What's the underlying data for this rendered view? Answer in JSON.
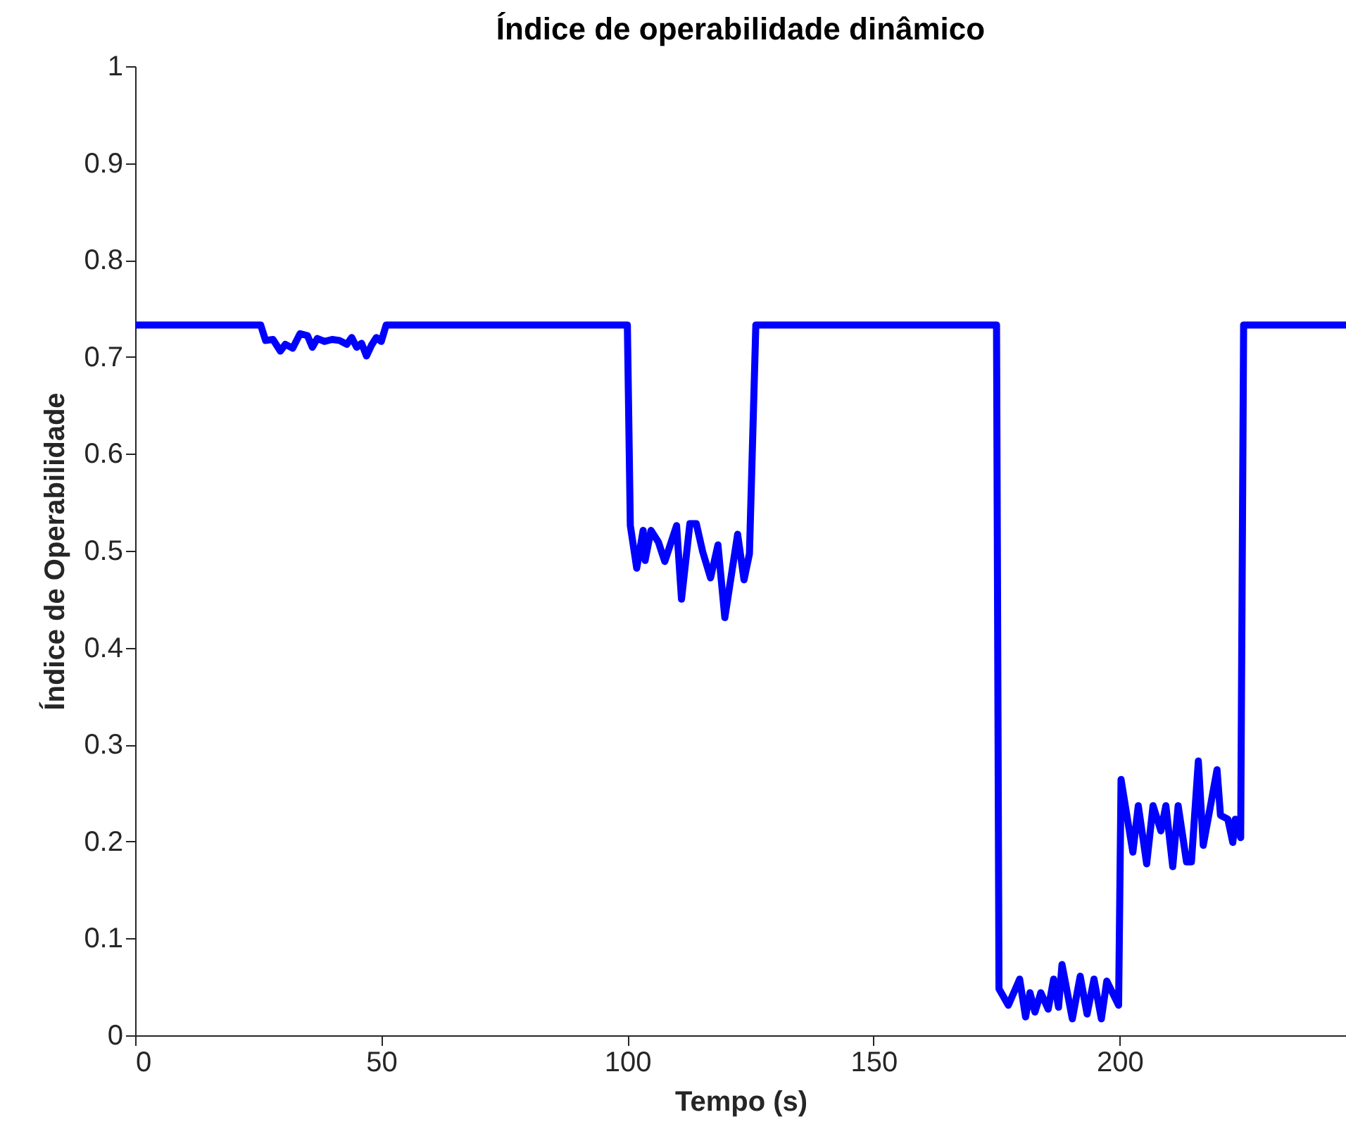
{
  "chart_data": {
    "type": "line",
    "title": "Índice de operabilidade dinâmico",
    "xlabel": "Tempo (s)",
    "ylabel": "Índice de Operabilidade",
    "xlim": [
      0,
      246
    ],
    "xticks": [
      0,
      50,
      100,
      150,
      200
    ],
    "ylim": [
      0,
      1
    ],
    "yticks": [
      0,
      0.1,
      0.2,
      0.3,
      0.4,
      0.5,
      0.6,
      0.7,
      0.8,
      0.9,
      1
    ],
    "grid": false,
    "marker": "none",
    "line_style": "solid",
    "series": [
      {
        "color": "#0000ff",
        "x": [
          0,
          25.5,
          26.5,
          28,
          29.5,
          30.5,
          32,
          33.5,
          35,
          36,
          37,
          38.5,
          40,
          41.5,
          43,
          44,
          45,
          46,
          47,
          48,
          49,
          50,
          51,
          100,
          100.6,
          101.9,
          103.2,
          103.6,
          104.8,
          106.3,
          107.6,
          110,
          111,
          112.7,
          114,
          115.3,
          116.9,
          118.4,
          119.8,
          122.4,
          123.7,
          124.8,
          126.1,
          175,
          175.5,
          177.4,
          179.7,
          180.9,
          181.8,
          182.8,
          184,
          185.5,
          186.6,
          187.6,
          188.3,
          190.4,
          192,
          193.4,
          194.8,
          196.3,
          197.4,
          199.8,
          200.3,
          201.7,
          202.7,
          203.8,
          205.5,
          206.8,
          208.4,
          209.4,
          210.8,
          211.9,
          213.6,
          214.6,
          216,
          217,
          219.8,
          220.5,
          222,
          223,
          223.5,
          224.6,
          225.2,
          246
        ],
        "values": [
          0.733,
          0.733,
          0.717,
          0.718,
          0.706,
          0.713,
          0.709,
          0.724,
          0.722,
          0.71,
          0.719,
          0.716,
          0.718,
          0.717,
          0.713,
          0.72,
          0.71,
          0.714,
          0.701,
          0.712,
          0.72,
          0.716,
          0.733,
          0.733,
          0.526,
          0.482,
          0.521,
          0.49,
          0.521,
          0.509,
          0.489,
          0.526,
          0.45,
          0.528,
          0.528,
          0.499,
          0.472,
          0.506,
          0.431,
          0.517,
          0.47,
          0.497,
          0.733,
          0.733,
          0.048,
          0.031,
          0.058,
          0.019,
          0.044,
          0.024,
          0.044,
          0.027,
          0.058,
          0.029,
          0.073,
          0.017,
          0.061,
          0.022,
          0.058,
          0.017,
          0.056,
          0.031,
          0.264,
          0.22,
          0.189,
          0.237,
          0.177,
          0.237,
          0.211,
          0.237,
          0.174,
          0.237,
          0.179,
          0.179,
          0.283,
          0.196,
          0.274,
          0.227,
          0.223,
          0.199,
          0.223,
          0.204,
          0.733,
          0.733
        ]
      }
    ]
  }
}
